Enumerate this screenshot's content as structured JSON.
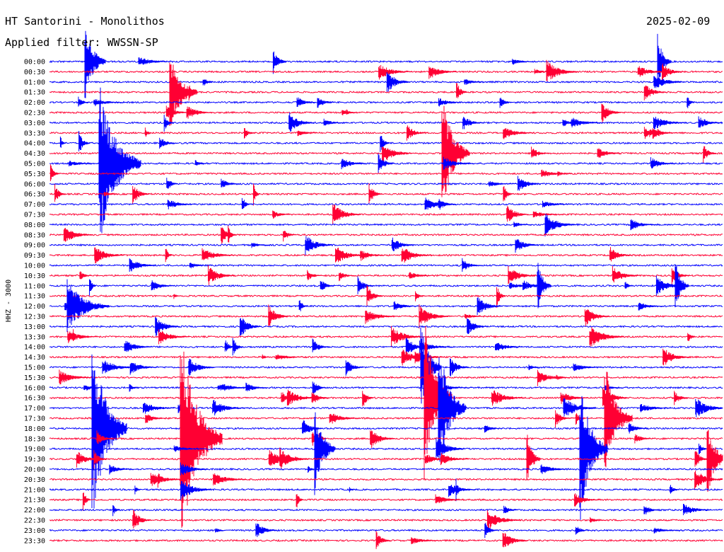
{
  "header": {
    "station": "HT Santorini - Monolithos",
    "date": "2025-02-09",
    "filter": "Applied filter: WWSSN-SP"
  },
  "chart_data": {
    "type": "line",
    "title": "HT Santorini - Monolithos",
    "subtitle": "Applied filter: WWSSN-SP",
    "date": "2025-02-09",
    "ylabel": "HHZ - 3000",
    "xlabel": "",
    "grid": false,
    "trace_colors": [
      "#0000ff",
      "#ff0033"
    ],
    "rows": [
      "00:00",
      "00:30",
      "01:00",
      "01:30",
      "02:00",
      "02:30",
      "03:00",
      "03:30",
      "04:00",
      "04:30",
      "05:00",
      "05:30",
      "06:00",
      "06:30",
      "07:00",
      "07:30",
      "08:00",
      "08:30",
      "09:00",
      "09:30",
      "10:00",
      "10:30",
      "11:00",
      "11:30",
      "12:00",
      "12:30",
      "13:00",
      "13:30",
      "14:00",
      "14:30",
      "15:00",
      "15:30",
      "16:00",
      "16:30",
      "17:00",
      "17:30",
      "18:00",
      "18:30",
      "19:00",
      "19:30",
      "20:00",
      "20:30",
      "21:00",
      "21:30",
      "22:00",
      "22:30",
      "23:00",
      "23:30"
    ]
  }
}
